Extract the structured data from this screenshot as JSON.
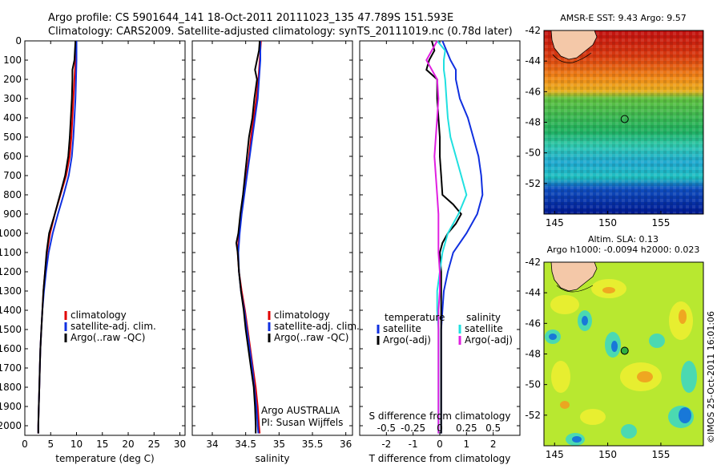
{
  "header": {
    "line1": "Argo profile: CS 5901644_141 18-Oct-2011 20111023_135 47.789S 151.593E",
    "line2": "Climatology: CARS2009. Satellite-adjusted climatology: synTS_20111019.nc (0.78d later)"
  },
  "side_stamp": "©IMOS 25-Oct-2011 16:01:06",
  "colors": {
    "climatology": "#e00000",
    "satellite": "#1030e0",
    "argo": "#000000",
    "salinity_satellite": "#20e0e0",
    "salinity_argo": "#e020e0"
  },
  "chart_data": [
    {
      "type": "line",
      "id": "temperature",
      "xlabel": "temperature (deg C)",
      "xlim": [
        0,
        31
      ],
      "ylim": [
        2050,
        0
      ],
      "x_ticks": [
        0,
        5,
        10,
        15,
        20,
        25,
        30
      ],
      "y_ticks": [
        0,
        100,
        200,
        300,
        400,
        500,
        600,
        700,
        800,
        900,
        1000,
        1100,
        1200,
        1300,
        1400,
        1500,
        1600,
        1700,
        1800,
        1900,
        2000
      ],
      "legend": {
        "placement": "center-left",
        "entries": [
          "climatology",
          "satellite-adj. clim.",
          "Argo(..raw -QC)"
        ]
      },
      "series": [
        {
          "name": "climatology",
          "color_key": "climatology",
          "depth": [
            0,
            100,
            200,
            300,
            400,
            500,
            600,
            700,
            800,
            900,
            1000,
            1100,
            1200,
            1300,
            1400,
            1500,
            1600,
            1700,
            1800,
            1900,
            2000,
            2040
          ],
          "values": [
            9.9,
            9.8,
            9.6,
            9.4,
            9.2,
            9.0,
            8.7,
            8.0,
            6.9,
            5.8,
            4.9,
            4.3,
            3.9,
            3.6,
            3.4,
            3.2,
            3.0,
            2.9,
            2.8,
            2.7,
            2.6,
            2.6
          ]
        },
        {
          "name": "satellite-adj. clim.",
          "color_key": "satellite",
          "depth": [
            0,
            100,
            200,
            300,
            400,
            500,
            600,
            700,
            800,
            900,
            1000,
            1100,
            1200,
            1300,
            1400,
            1500,
            1600,
            1700,
            1800,
            1900,
            2000,
            2040
          ],
          "values": [
            10.0,
            10.0,
            9.9,
            9.8,
            9.6,
            9.4,
            9.1,
            8.5,
            7.5,
            6.4,
            5.4,
            4.6,
            4.1,
            3.7,
            3.4,
            3.2,
            3.0,
            2.9,
            2.8,
            2.7,
            2.6,
            2.6
          ]
        },
        {
          "name": "Argo(..raw -QC)",
          "color_key": "argo",
          "depth": [
            0,
            100,
            150,
            200,
            300,
            400,
            500,
            600,
            700,
            800,
            900,
            1000,
            1100,
            1200,
            1300,
            1400,
            1500,
            1600,
            1700,
            1800,
            1900,
            2000,
            2040
          ],
          "values": [
            9.8,
            9.6,
            9.2,
            9.2,
            9.1,
            8.9,
            8.7,
            8.4,
            7.8,
            6.8,
            5.8,
            4.7,
            4.2,
            3.9,
            3.6,
            3.4,
            3.2,
            3.0,
            2.9,
            2.8,
            2.7,
            2.6,
            2.6
          ]
        }
      ]
    },
    {
      "type": "line",
      "id": "salinity",
      "xlabel": "salinity",
      "xlim": [
        33.7,
        36.1
      ],
      "ylim": [
        2050,
        0
      ],
      "x_ticks": [
        34,
        34.5,
        35,
        35.5,
        36
      ],
      "y_ticks": [],
      "legend": {
        "placement": "center-right",
        "entries": [
          "climatology",
          "satellite-adj. clim.",
          "Argo(..raw -QC)"
        ]
      },
      "note": {
        "line1": "Argo AUSTRALIA",
        "line2": "PI: Susan Wijffels"
      },
      "series": [
        {
          "name": "climatology",
          "color_key": "climatology",
          "depth": [
            0,
            100,
            200,
            300,
            400,
            500,
            600,
            700,
            800,
            900,
            1000,
            1100,
            1200,
            1300,
            1400,
            1500,
            1600,
            1700,
            1800,
            1900,
            2000,
            2040
          ],
          "values": [
            34.73,
            34.71,
            34.69,
            34.66,
            34.62,
            34.58,
            34.55,
            34.51,
            34.47,
            34.43,
            34.4,
            34.38,
            34.4,
            34.44,
            34.49,
            34.53,
            34.57,
            34.61,
            34.65,
            34.68,
            34.7,
            34.71
          ]
        },
        {
          "name": "satellite-adj. clim.",
          "color_key": "satellite",
          "depth": [
            0,
            100,
            200,
            300,
            400,
            500,
            600,
            700,
            800,
            900,
            1000,
            1100,
            1200,
            1300,
            1400,
            1500,
            1600,
            1700,
            1800,
            1900,
            2000,
            2040
          ],
          "values": [
            34.72,
            34.72,
            34.7,
            34.68,
            34.64,
            34.6,
            34.56,
            34.52,
            34.48,
            34.44,
            34.41,
            34.39,
            34.4,
            34.43,
            34.48,
            34.52,
            34.56,
            34.6,
            34.63,
            34.66,
            34.68,
            34.69
          ]
        },
        {
          "name": "Argo(..raw -QC)",
          "color_key": "argo",
          "depth": [
            0,
            50,
            100,
            150,
            200,
            300,
            400,
            500,
            600,
            700,
            800,
            900,
            1000,
            1050,
            1100,
            1200,
            1300,
            1400,
            1500,
            1600,
            1700,
            1800,
            1900,
            2000,
            2040
          ],
          "values": [
            34.71,
            34.7,
            34.67,
            34.64,
            34.67,
            34.63,
            34.6,
            34.55,
            34.52,
            34.49,
            34.46,
            34.42,
            34.39,
            34.36,
            34.38,
            34.4,
            34.43,
            34.47,
            34.5,
            34.54,
            34.58,
            34.62,
            34.64,
            34.65,
            34.65
          ]
        }
      ]
    },
    {
      "type": "line",
      "id": "difference",
      "xlabel": "T difference from climatology",
      "xlabel_top": "S difference from climatology",
      "xlim": [
        -3,
        3
      ],
      "ylim": [
        2050,
        0
      ],
      "x_ticks": [
        -2,
        -1,
        0,
        1,
        2
      ],
      "x_ticks_top": {
        "positions": [
          -2,
          -1,
          0,
          1,
          2
        ],
        "labels": [
          "-0.5",
          "-0.25",
          "0",
          "0.25",
          "0.5"
        ]
      },
      "y_ticks": [],
      "legend": {
        "placement": "center",
        "groups": [
          {
            "title": "temperature",
            "entries": [
              "satellite",
              "Argo(-adj)"
            ]
          },
          {
            "title": "salinity",
            "entries": [
              "satellite",
              "Argo(-adj)"
            ]
          }
        ]
      },
      "series": [
        {
          "name": "satellite",
          "group": "temperature",
          "color_key": "satellite",
          "depth": [
            0,
            50,
            100,
            150,
            200,
            300,
            400,
            500,
            600,
            700,
            800,
            900,
            1000,
            1100,
            1200,
            1300,
            1400,
            1500,
            1600,
            1700,
            1800,
            1900,
            2000,
            2040
          ],
          "values": [
            0.1,
            0.25,
            0.4,
            0.6,
            0.6,
            0.75,
            1.05,
            1.25,
            1.45,
            1.55,
            1.6,
            1.4,
            1.0,
            0.5,
            0.3,
            0.15,
            0.1,
            0.05,
            0.05,
            0.05,
            0.05,
            0.05,
            0.05,
            0.05
          ]
        },
        {
          "name": "Argo(-adj)",
          "group": "temperature",
          "color_key": "argo",
          "depth": [
            0,
            50,
            100,
            150,
            200,
            300,
            400,
            500,
            600,
            700,
            800,
            850,
            900,
            950,
            1000,
            1050,
            1100,
            1200,
            1300,
            1400,
            1500,
            1600,
            1700,
            1800,
            1900,
            2000,
            2040
          ],
          "values": [
            -0.3,
            -0.2,
            -0.4,
            -0.5,
            -0.1,
            -0.1,
            -0.05,
            0,
            0,
            0.05,
            0.1,
            0.5,
            0.8,
            0.6,
            0.3,
            0.1,
            0,
            0.05,
            0.05,
            0.05,
            0.05,
            0.05,
            0.05,
            0.05,
            0.05,
            0.05,
            0.05
          ]
        },
        {
          "name": "satellite",
          "group": "salinity",
          "color_key": "salinity_satellite",
          "depth": [
            0,
            50,
            100,
            150,
            200,
            300,
            400,
            500,
            600,
            700,
            800,
            900,
            1000,
            1100,
            1200,
            1300,
            1400,
            1500,
            1600,
            1700,
            1800,
            1900,
            2000,
            2040
          ],
          "values": [
            -0.1,
            0.2,
            0.15,
            0.15,
            0.2,
            0.25,
            0.3,
            0.4,
            0.6,
            0.8,
            1.0,
            0.7,
            0.3,
            0.1,
            0,
            -0.1,
            -0.1,
            -0.05,
            -0.05,
            -0.05,
            -0.05,
            -0.05,
            -0.05,
            -0.05
          ]
        },
        {
          "name": "Argo(-adj)",
          "group": "salinity",
          "color_key": "salinity_argo",
          "depth": [
            0,
            50,
            100,
            150,
            200,
            300,
            400,
            500,
            600,
            700,
            800,
            900,
            1000,
            1100,
            1200,
            1300,
            1400,
            1500,
            1600,
            1700,
            1800,
            1900,
            2000,
            2040
          ],
          "values": [
            -0.1,
            -0.3,
            -0.5,
            -0.3,
            -0.1,
            -0.05,
            -0.1,
            -0.15,
            -0.2,
            -0.15,
            -0.1,
            -0.05,
            -0.05,
            -0.05,
            0,
            0,
            -0.05,
            -0.05,
            -0.05,
            -0.05,
            -0.05,
            -0.05,
            -0.05,
            -0.05
          ]
        }
      ]
    },
    {
      "type": "heatmap",
      "id": "sst_map",
      "title": "AMSR-E SST: 9.43 Argo: 9.57",
      "xlim": [
        144,
        159
      ],
      "ylim": [
        -54,
        -42
      ],
      "x_ticks": [
        145,
        150,
        155
      ],
      "y_ticks": [
        -42,
        -44,
        -46,
        -48,
        -50,
        -52
      ],
      "argo_position": {
        "lon": 151.593,
        "lat": -47.789
      }
    },
    {
      "type": "heatmap",
      "id": "sla_map",
      "title_line1": "Altim. SLA: 0.13",
      "title_line2": "Argo h1000: -0.0094 h2000: 0.023",
      "xlim": [
        144,
        159
      ],
      "ylim": [
        -54,
        -42
      ],
      "x_ticks": [
        145,
        150,
        155
      ],
      "y_ticks": [
        -42,
        -44,
        -46,
        -48,
        -50,
        -52
      ],
      "argo_position": {
        "lon": 151.593,
        "lat": -47.789
      }
    }
  ]
}
